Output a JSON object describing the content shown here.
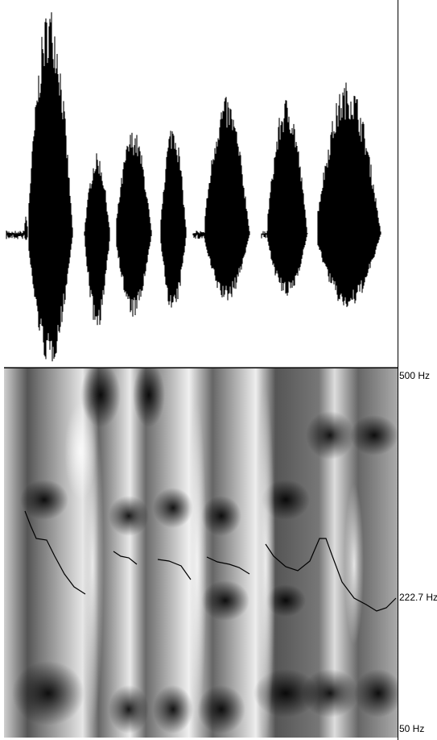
{
  "spectrogram": {
    "axis_labels": {
      "top": "500 Hz",
      "middle": "222.7 Hz",
      "bottom": "50 Hz"
    }
  }
}
